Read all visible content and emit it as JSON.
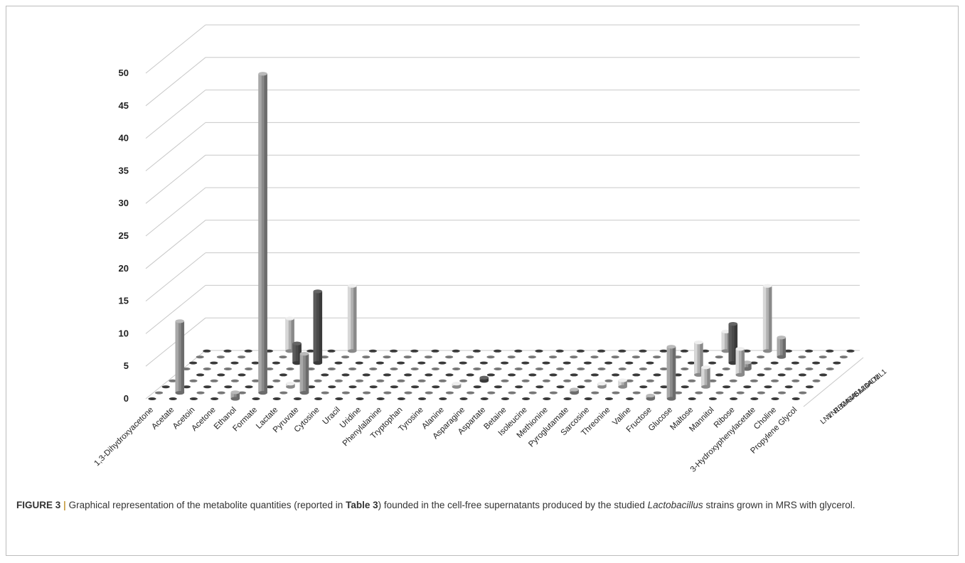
{
  "chart_data": {
    "type": "bar",
    "subtype": "3d-column",
    "yticks": [
      0,
      5,
      10,
      15,
      20,
      25,
      30,
      35,
      40,
      45,
      50
    ],
    "ylim": [
      0,
      50
    ],
    "grid": true,
    "categories": [
      "1,3-Dihydroxyacetone",
      "Acetate",
      "Acetoin",
      "Acetone",
      "Ethanol",
      "Formate",
      "Lactate",
      "Pyruvate",
      "Cytosine",
      "Uracil",
      "Uridine",
      "Phenylalanine",
      "Tryptophan",
      "Tyrosine",
      "Alanine",
      "Asparagine",
      "Aspartate",
      "Betaine",
      "Isoleucine",
      "Methionine",
      "Pyroglutamate",
      "Sarcosine",
      "Threonine",
      "Valine",
      "Fructose",
      "Glucose",
      "Maltose",
      "Mannitol",
      "Ribose",
      "3-Hydroxyphenylacetate",
      "Choline",
      "Propylene Glycol"
    ],
    "depth_series": [
      "LN1",
      "VN1",
      "RB24",
      "MA4A",
      "SA51",
      "SA24",
      "AD4",
      "AD1",
      "ML1"
    ],
    "series": [
      {
        "name": "LN1",
        "values": [
          0,
          0,
          0,
          0,
          1,
          0,
          0,
          0,
          0,
          0,
          0,
          0,
          0,
          0,
          0,
          0,
          0,
          0,
          0,
          0,
          0,
          0,
          0,
          0,
          0.5,
          8,
          0,
          0,
          0,
          0,
          0,
          0
        ]
      },
      {
        "name": "VN1",
        "values": [
          0,
          11,
          0,
          0,
          0,
          49,
          0,
          6,
          0,
          0,
          0,
          0,
          0,
          0,
          0,
          0,
          0,
          0,
          0,
          0,
          0.5,
          0,
          0,
          0,
          0,
          0,
          0,
          0,
          0,
          0,
          0,
          0
        ]
      },
      {
        "name": "RB24",
        "values": [
          0,
          0,
          0,
          0,
          0,
          0,
          0.5,
          0,
          0,
          0,
          0,
          0,
          0,
          0,
          0.5,
          0,
          0,
          0,
          0,
          0,
          0,
          0.5,
          1,
          0,
          0,
          0,
          3,
          0,
          0,
          0,
          0,
          0
        ]
      },
      {
        "name": "MA4A",
        "values": [
          0,
          0,
          0,
          0,
          0,
          0,
          0,
          0,
          0,
          0,
          0,
          0,
          0,
          0,
          0,
          0.5,
          0,
          0,
          0,
          0,
          0,
          0,
          0,
          0,
          0,
          0,
          0,
          0,
          0,
          0,
          0,
          0
        ]
      },
      {
        "name": "SA51",
        "values": [
          0,
          0,
          0,
          0,
          0,
          0,
          0,
          0,
          0,
          0,
          0,
          0,
          0,
          0,
          0,
          0,
          0,
          0,
          0,
          0,
          0,
          0,
          0,
          0,
          0,
          5,
          0,
          4,
          0,
          0,
          0,
          0
        ]
      },
      {
        "name": "SA24",
        "values": [
          0,
          0,
          0,
          0,
          0,
          0,
          0,
          0,
          0,
          0,
          0,
          0,
          0,
          0,
          0,
          0,
          0,
          0,
          0,
          0,
          0,
          0,
          0,
          0,
          0,
          0,
          0,
          1,
          0,
          0,
          0,
          0
        ]
      },
      {
        "name": "AD4",
        "values": [
          0,
          0,
          0,
          0,
          0,
          3,
          11,
          0,
          0,
          0,
          0,
          0,
          0,
          0,
          0,
          0,
          0,
          0,
          0,
          0,
          0,
          0,
          0,
          0,
          0,
          0,
          6,
          0,
          0,
          0,
          0,
          0
        ]
      },
      {
        "name": "AD1",
        "values": [
          0,
          0,
          0,
          0,
          0,
          0,
          0,
          0,
          0,
          0,
          0,
          0,
          0,
          0,
          0,
          0,
          0,
          0,
          0,
          0,
          0,
          0,
          0,
          0,
          0,
          0,
          0,
          0,
          3,
          0,
          0,
          0
        ]
      },
      {
        "name": "ML1",
        "values": [
          0,
          0,
          0,
          0,
          5,
          0,
          0,
          10,
          0,
          0,
          0,
          0,
          0,
          0,
          0,
          0,
          0,
          0,
          0,
          0,
          0,
          0,
          0,
          0,
          0,
          3,
          0,
          10,
          0,
          0,
          0,
          0
        ]
      }
    ]
  },
  "caption": {
    "label": "FIGURE 3",
    "separator": "|",
    "text_1": "Graphical representation of the metabolite quantities (reported in",
    "ref": "Table 3",
    "text_2": ") founded in the cell-free supernatants produced by the studied",
    "genus": "Lactobacillus",
    "text_3": "strains grown in MRS with glycerol."
  },
  "colors": {
    "light": "#b0b0b0",
    "mid": "#8a8a8a",
    "dark": "#4a4a4a",
    "grid": "#c8c8c8",
    "floor_dot": "#3a3a3a"
  }
}
